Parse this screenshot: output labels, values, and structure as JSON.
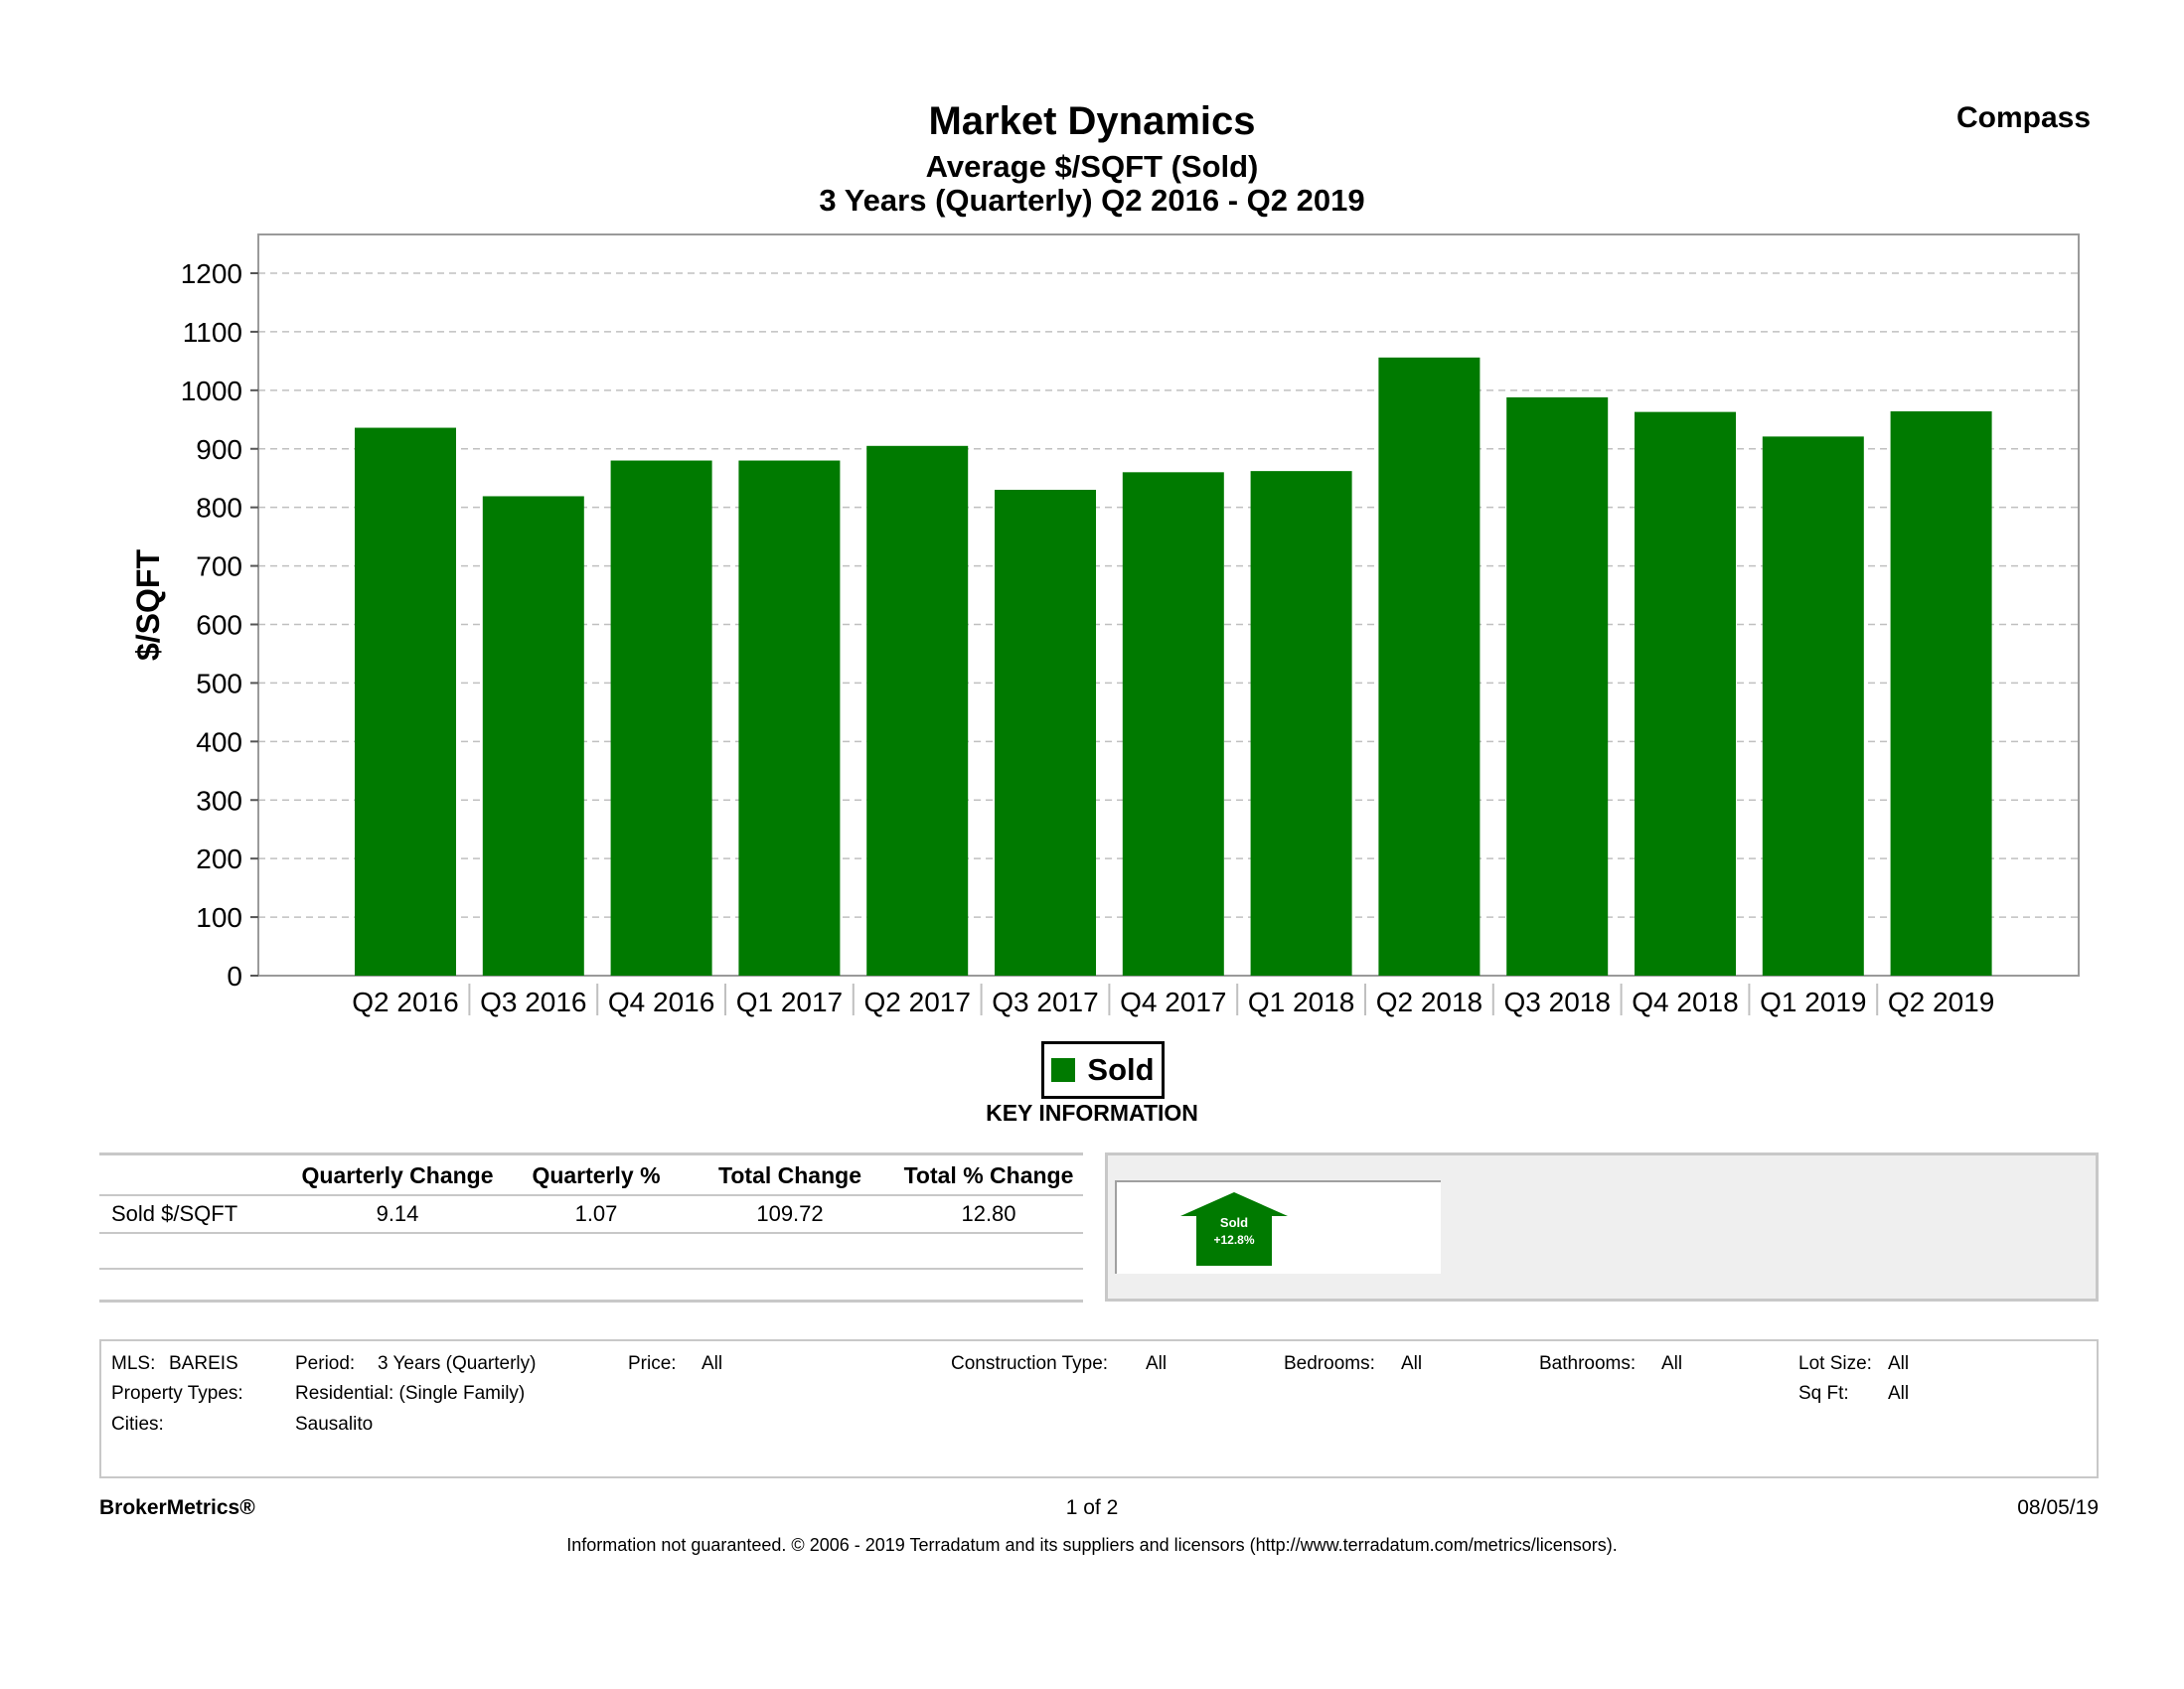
{
  "header": {
    "title": "Market Dynamics",
    "subtitle": "Average $/SQFT (Sold)",
    "period_line": "3 Years (Quarterly) Q2 2016 - Q2 2019",
    "brand": "Compass"
  },
  "colors": {
    "bar": "#007a00",
    "grid": "#c0c0c0"
  },
  "chart_data": {
    "type": "bar",
    "title": "Market Dynamics",
    "ylabel": "$/SQFT",
    "xlabel": "",
    "categories": [
      "Q2 2016",
      "Q3 2016",
      "Q4 2016",
      "Q1 2017",
      "Q2 2017",
      "Q3 2017",
      "Q4 2017",
      "Q1 2018",
      "Q2 2018",
      "Q3 2018",
      "Q4 2018",
      "Q1 2019",
      "Q2 2019"
    ],
    "series": [
      {
        "name": "Sold",
        "values": [
          936,
          819,
          880,
          880,
          905,
          830,
          860,
          862,
          1056,
          988,
          963,
          921,
          964
        ]
      }
    ],
    "ylim": [
      0,
      1270
    ],
    "yticks": [
      0,
      100,
      200,
      300,
      400,
      500,
      600,
      700,
      800,
      900,
      1000,
      1100,
      1200
    ],
    "grid": true,
    "legend": "bottom-center"
  },
  "key_info": {
    "heading": "KEY INFORMATION",
    "columns": [
      "Quarterly Change",
      "Quarterly %",
      "Total Change",
      "Total % Change"
    ],
    "rows": [
      {
        "label": "Sold $/SQFT",
        "values": [
          "9.14",
          "1.07",
          "109.72",
          "12.80"
        ]
      }
    ],
    "badge": {
      "label": "Sold",
      "change": "+12.8%"
    }
  },
  "criteria": {
    "mls_label": "MLS:",
    "mls": "BAREIS",
    "period_label": "Period:",
    "period": "3 Years (Quarterly)",
    "price_label": "Price:",
    "price": "All",
    "construction_label": "Construction Type:",
    "construction": "All",
    "bedrooms_label": "Bedrooms:",
    "bedrooms": "All",
    "bathrooms_label": "Bathrooms:",
    "bathrooms": "All",
    "lot_label": "Lot Size:",
    "lot": "All",
    "ptype_label": "Property Types:",
    "ptype": "Residential: (Single Family)",
    "sqft_label": "Sq Ft:",
    "sqft": "All",
    "cities_label": "Cities:",
    "cities": "Sausalito"
  },
  "footer": {
    "product": "BrokerMetrics®",
    "page": "1 of 2",
    "date": "08/05/19",
    "disclaimer": "Information not guaranteed.  © 2006 - 2019 Terradatum and its suppliers and licensors (http://www.terradatum.com/metrics/licensors)."
  }
}
